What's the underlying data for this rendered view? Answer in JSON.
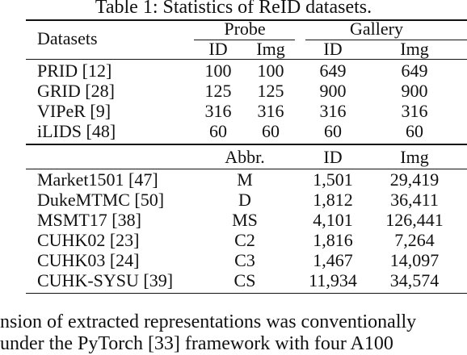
{
  "caption": "Table 1: Statistics of ReID datasets.",
  "top_table": {
    "row_header": "Datasets",
    "groups": [
      "Probe",
      "Gallery"
    ],
    "subheaders": [
      "ID",
      "Img",
      "ID",
      "Img"
    ],
    "rows": [
      {
        "name": "PRID [12]",
        "values": [
          "100",
          "100",
          "649",
          "649"
        ]
      },
      {
        "name": "GRID [28]",
        "values": [
          "125",
          "125",
          "900",
          "900"
        ]
      },
      {
        "name": "VIPeR [9]",
        "values": [
          "316",
          "316",
          "316",
          "316"
        ]
      },
      {
        "name": "iLIDS [48]",
        "values": [
          "60",
          "60",
          "60",
          "60"
        ]
      }
    ]
  },
  "bottom_table": {
    "headers": [
      "Abbr.",
      "ID",
      "Img"
    ],
    "rows": [
      {
        "name": "Market1501 [47]",
        "abbr": "M",
        "id": "1,501",
        "img": "29,419"
      },
      {
        "name": "DukeMTMC [50]",
        "abbr": "D",
        "id": "1,812",
        "img": "36,411"
      },
      {
        "name": "MSMT17 [38]",
        "abbr": "MS",
        "id": "4,101",
        "img": "126,441"
      },
      {
        "name": "CUHK02 [23]",
        "abbr": "C2",
        "id": "1,816",
        "img": "7,264"
      },
      {
        "name": "CUHK03 [24]",
        "abbr": "C3",
        "id": "1,467",
        "img": "14,097"
      },
      {
        "name": "CUHK-SYSU [39]",
        "abbr": "CS",
        "id": "11,934",
        "img": "34,574"
      }
    ]
  },
  "body_text": {
    "line1": "nsion of extracted representations was conventionally",
    "line2": "under the PyTorch [33] framework with four A100"
  }
}
